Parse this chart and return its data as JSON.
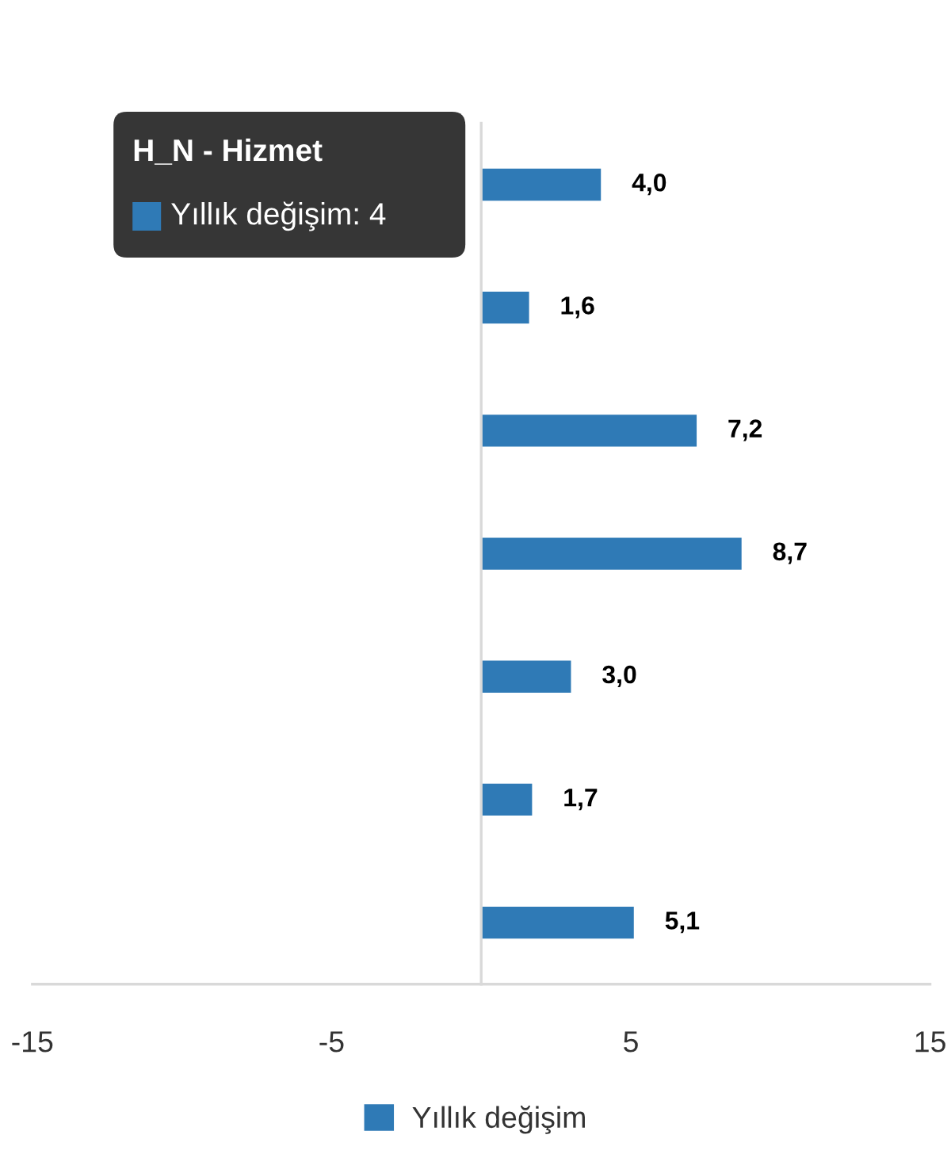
{
  "chart_data": {
    "type": "bar",
    "orientation": "horizontal",
    "categories": [
      null,
      null,
      null,
      null,
      null,
      null,
      null
    ],
    "series": [
      {
        "name": "Yıllık değişim",
        "color": "#2f7ab6",
        "values": [
          4.0,
          1.6,
          7.2,
          8.7,
          3.0,
          1.7,
          5.1
        ],
        "value_labels": [
          "4,0",
          "1,6",
          "7,2",
          "8,7",
          "3,0",
          "1,7",
          "5,1"
        ]
      }
    ],
    "xlim": [
      -15,
      15
    ],
    "xticks": [
      -15,
      -5,
      5,
      15
    ],
    "grid": false,
    "legend": "bottom",
    "annotations": [
      "H_N - Hizmet",
      "Yıllık değişim: 4"
    ]
  }
}
